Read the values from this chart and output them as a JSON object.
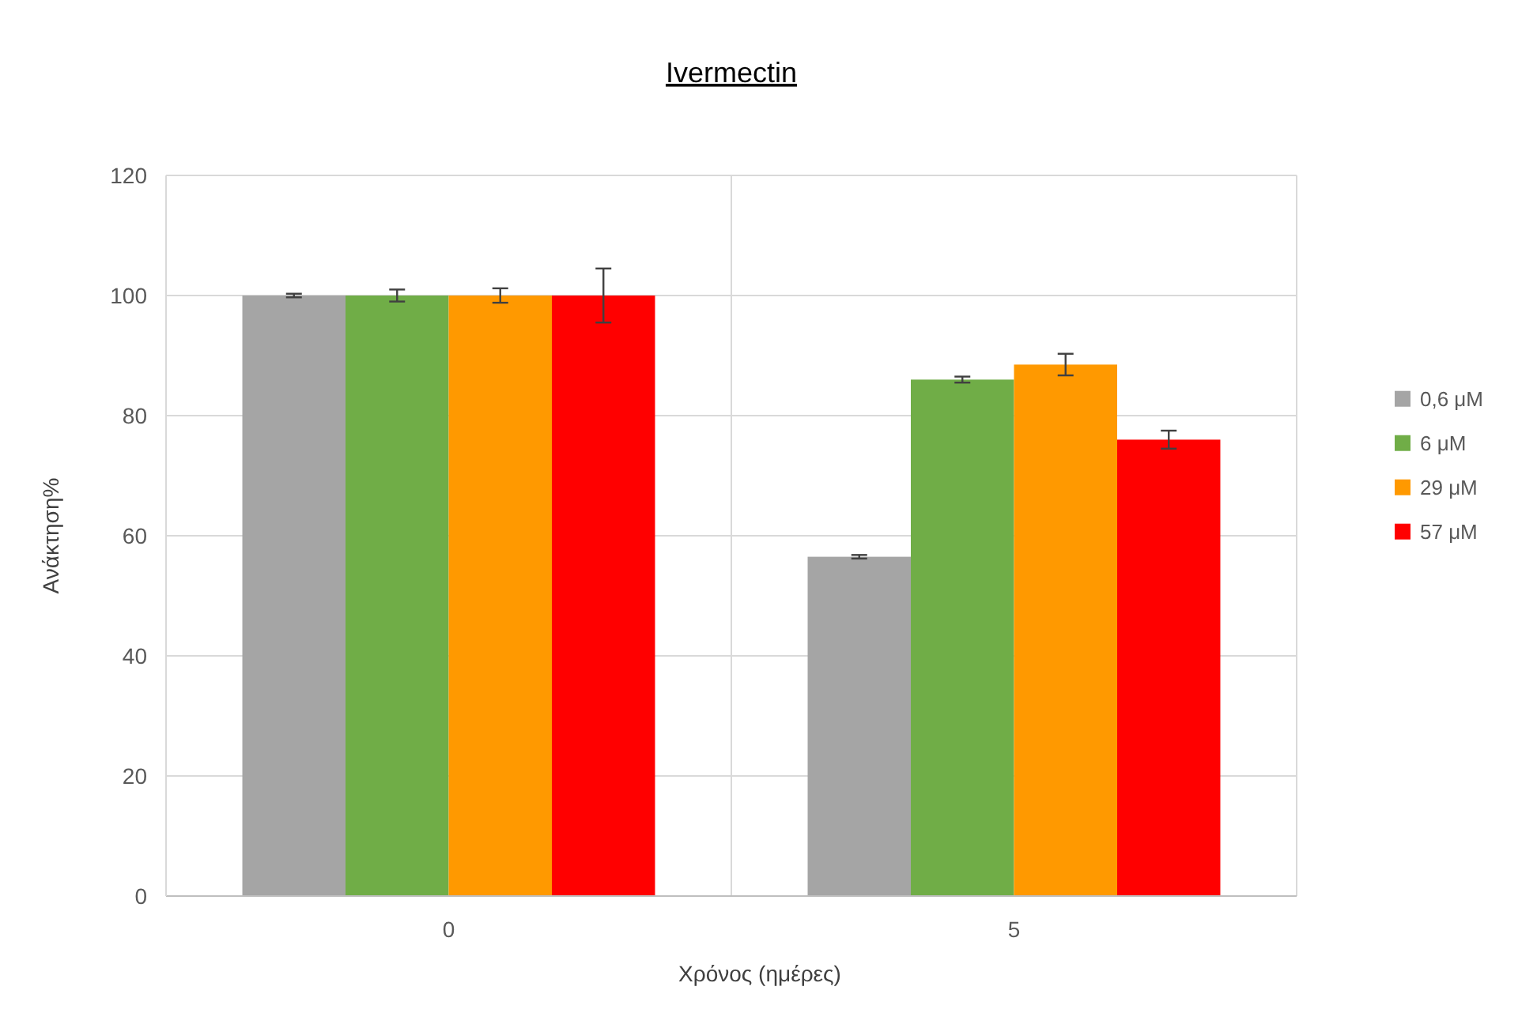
{
  "chart_data": {
    "type": "bar",
    "title": "Ivermectin",
    "xlabel": "Χρόνος (ημέρες)",
    "ylabel": "Ανάκτηση%",
    "categories": [
      "0",
      "5"
    ],
    "series": [
      {
        "name": "0,6 μM",
        "color": "#a5a5a5",
        "values": [
          100,
          56.5
        ],
        "errors": [
          0.3,
          0.3
        ]
      },
      {
        "name": "6 μM",
        "color": "#70ad47",
        "values": [
          100,
          86
        ],
        "errors": [
          1,
          0.5
        ]
      },
      {
        "name": "29 μM",
        "color": "#ff9900",
        "values": [
          100,
          88.5
        ],
        "errors": [
          1.2,
          1.8
        ]
      },
      {
        "name": "57 μM",
        "color": "#ff0000",
        "values": [
          100,
          76
        ],
        "errors": [
          4.5,
          1.5
        ]
      }
    ],
    "ylim": [
      0,
      120
    ],
    "yticks": [
      0,
      20,
      40,
      60,
      80,
      100,
      120
    ],
    "grid": true,
    "legend": "right"
  }
}
